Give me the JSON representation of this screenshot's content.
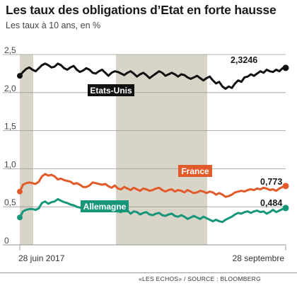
{
  "header": {
    "title": "Les taux des obligations d’Etat en forte hausse",
    "subtitle": "Les taux à 10 ans, en %"
  },
  "footer": {
    "source": "«LES ECHOS» / SOURCE : BLOOMBERG"
  },
  "chart_data": {
    "type": "line",
    "title": "Les taux des obligations d’Etat en forte hausse",
    "subtitle": "Les taux à 10 ans, en %",
    "ylim": [
      0,
      2.5
    ],
    "y_ticks": [
      "2,5",
      "2,0",
      "1,5",
      "1,0",
      "0,5",
      "0"
    ],
    "x_tick_labels": [
      "28 juin 2017",
      "28 septembre"
    ],
    "x_range": [
      "2017-06-28",
      "2017-09-28"
    ],
    "grid": true,
    "background_bands": "alternating monthly shading",
    "colors": {
      "Etats-Unis": "#111111",
      "France": "#e05a2a",
      "Allemagne": "#17967a",
      "band": "#d8d5c8"
    },
    "series": [
      {
        "name": "Etats-Unis",
        "last_value_label": "2,3246",
        "values": [
          2.22,
          2.27,
          2.31,
          2.33,
          2.3,
          2.28,
          2.32,
          2.36,
          2.38,
          2.36,
          2.33,
          2.34,
          2.38,
          2.36,
          2.32,
          2.3,
          2.33,
          2.35,
          2.3,
          2.27,
          2.29,
          2.32,
          2.3,
          2.26,
          2.25,
          2.28,
          2.3,
          2.26,
          2.22,
          2.26,
          2.28,
          2.27,
          2.25,
          2.23,
          2.26,
          2.28,
          2.25,
          2.21,
          2.24,
          2.26,
          2.23,
          2.19,
          2.22,
          2.25,
          2.28,
          2.26,
          2.22,
          2.24,
          2.26,
          2.24,
          2.21,
          2.24,
          2.23,
          2.2,
          2.18,
          2.2,
          2.22,
          2.19,
          2.16,
          2.19,
          2.21,
          2.16,
          2.12,
          2.14,
          2.08,
          2.05,
          2.08,
          2.06,
          2.12,
          2.16,
          2.14,
          2.2,
          2.21,
          2.24,
          2.22,
          2.25,
          2.28,
          2.26,
          2.3,
          2.28,
          2.27,
          2.3,
          2.28,
          2.32,
          2.3246
        ]
      },
      {
        "name": "France",
        "last_value_label": "0,773",
        "values": [
          0.7,
          0.79,
          0.81,
          0.82,
          0.81,
          0.8,
          0.83,
          0.9,
          0.93,
          0.91,
          0.92,
          0.9,
          0.86,
          0.87,
          0.85,
          0.84,
          0.83,
          0.8,
          0.81,
          0.79,
          0.76,
          0.76,
          0.78,
          0.82,
          0.81,
          0.8,
          0.79,
          0.8,
          0.77,
          0.75,
          0.78,
          0.74,
          0.73,
          0.76,
          0.74,
          0.72,
          0.75,
          0.73,
          0.71,
          0.74,
          0.73,
          0.71,
          0.72,
          0.74,
          0.75,
          0.72,
          0.7,
          0.72,
          0.73,
          0.7,
          0.72,
          0.71,
          0.69,
          0.72,
          0.7,
          0.68,
          0.69,
          0.71,
          0.7,
          0.68,
          0.7,
          0.69,
          0.66,
          0.68,
          0.66,
          0.63,
          0.64,
          0.66,
          0.69,
          0.7,
          0.71,
          0.7,
          0.72,
          0.73,
          0.72,
          0.74,
          0.73,
          0.75,
          0.74,
          0.72,
          0.73,
          0.71,
          0.74,
          0.76,
          0.773
        ]
      },
      {
        "name": "Allemagne",
        "last_value_label": "0,484",
        "values": [
          0.36,
          0.44,
          0.46,
          0.47,
          0.47,
          0.46,
          0.48,
          0.55,
          0.57,
          0.54,
          0.56,
          0.57,
          0.6,
          0.58,
          0.56,
          0.55,
          0.53,
          0.52,
          0.5,
          0.49,
          0.47,
          0.48,
          0.52,
          0.54,
          0.52,
          0.5,
          0.53,
          0.5,
          0.47,
          0.45,
          0.48,
          0.44,
          0.43,
          0.46,
          0.45,
          0.41,
          0.44,
          0.43,
          0.4,
          0.42,
          0.43,
          0.4,
          0.39,
          0.41,
          0.42,
          0.39,
          0.38,
          0.4,
          0.41,
          0.38,
          0.37,
          0.39,
          0.37,
          0.34,
          0.36,
          0.38,
          0.36,
          0.34,
          0.37,
          0.35,
          0.33,
          0.31,
          0.33,
          0.31,
          0.3,
          0.33,
          0.35,
          0.37,
          0.4,
          0.42,
          0.41,
          0.43,
          0.44,
          0.42,
          0.44,
          0.45,
          0.43,
          0.44,
          0.41,
          0.43,
          0.46,
          0.43,
          0.45,
          0.47,
          0.484
        ]
      }
    ]
  }
}
